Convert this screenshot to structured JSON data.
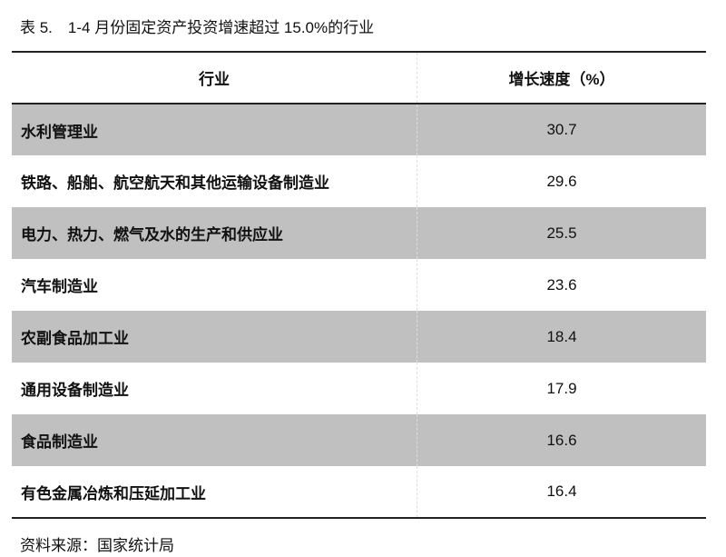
{
  "title": "表 5.　1-4 月份固定资产投资增速超过 15.0%的行业",
  "table": {
    "headers": [
      "行业",
      "增长速度（%）"
    ],
    "rows": [
      {
        "industry": "水利管理业",
        "growth": "30.7"
      },
      {
        "industry": "铁路、船舶、航空航天和其他运输设备制造业",
        "growth": "29.6"
      },
      {
        "industry": "电力、热力、燃气及水的生产和供应业",
        "growth": "25.5"
      },
      {
        "industry": "汽车制造业",
        "growth": "23.6"
      },
      {
        "industry": "农副食品加工业",
        "growth": "18.4"
      },
      {
        "industry": "通用设备制造业",
        "growth": "17.9"
      },
      {
        "industry": "食品制造业",
        "growth": "16.6"
      },
      {
        "industry": "有色金属冶炼和压延加工业",
        "growth": "16.4"
      }
    ],
    "shade_color": "#c0c0c0"
  },
  "source": "资料来源：国家统计局"
}
